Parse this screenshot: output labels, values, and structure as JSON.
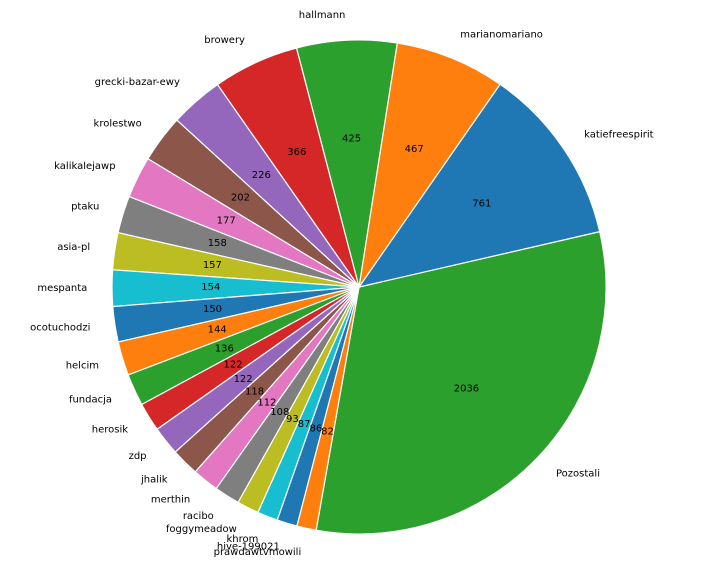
{
  "chart_data": {
    "type": "pie",
    "title": "",
    "start_angle_deg": -100.0,
    "direction": "counterclockwise",
    "categories": [
      "Pozostali",
      "katiefreespirit",
      "marianomariano",
      "hallmann",
      "browery",
      "grecki-bazar-ewy",
      "krolestwo",
      "kalikalejawp",
      "ptaku",
      "asia-pl",
      "mespanta",
      "ocotuchodzi",
      "helcim",
      "fundacja",
      "herosik",
      "zdp",
      "jhalik",
      "merthin",
      "racibo",
      "foggymeadow",
      "khrom",
      "hive-199021",
      "prawdawtvmowili"
    ],
    "values": [
      2036,
      761,
      467,
      425,
      366,
      226,
      202,
      177,
      158,
      157,
      154,
      150,
      144,
      136,
      122,
      122,
      118,
      112,
      108,
      93,
      87,
      86,
      82
    ],
    "colors": [
      "#2ca02c",
      "#1f77b4",
      "#ff7f0e",
      "#2ca02c",
      "#d62728",
      "#9467bd",
      "#8c564b",
      "#e377c2",
      "#7f7f7f",
      "#bcbd22",
      "#17becf",
      "#1f77b4",
      "#ff7f0e",
      "#2ca02c",
      "#d62728",
      "#9467bd",
      "#8c564b",
      "#e377c2",
      "#7f7f7f",
      "#bcbd22",
      "#17becf",
      "#1f77b4",
      "#ff7f0e"
    ],
    "value_labels": [
      "2036",
      "761",
      "467",
      "425",
      "366",
      "226",
      "202",
      "177",
      "158",
      "157",
      "154",
      "150",
      "144",
      "136",
      "122",
      "122",
      "118",
      "112",
      "108",
      "93",
      "87",
      "86",
      "82"
    ],
    "wedge_edge_color": "#ffffff"
  }
}
